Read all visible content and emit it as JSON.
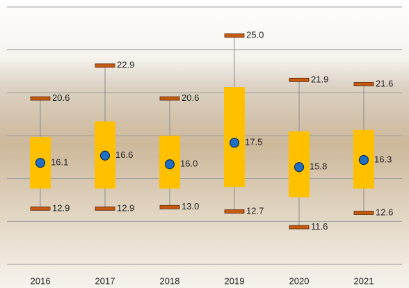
{
  "chart_data": {
    "type": "range-box",
    "categories": [
      "2016",
      "2017",
      "2018",
      "2019",
      "2020",
      "2021"
    ],
    "max": {
      "values": [
        20.6,
        22.9,
        20.6,
        25.0,
        21.9,
        21.6
      ],
      "value_labels": [
        "20.6",
        "22.9",
        "20.6",
        "25.0",
        "21.9",
        "21.6"
      ],
      "color": "#c55a11"
    },
    "min": {
      "values": [
        12.9,
        12.9,
        13.0,
        12.7,
        11.6,
        12.6
      ],
      "value_labels": [
        "12.9",
        "12.9",
        "13.0",
        "12.7",
        "11.6",
        "12.6"
      ],
      "color": "#c55a11"
    },
    "mean": {
      "values": [
        16.1,
        16.6,
        16.0,
        17.5,
        15.8,
        16.3
      ],
      "value_labels": [
        "16.1",
        "16.6",
        "16.0",
        "17.5",
        "15.8",
        "16.3"
      ],
      "color": "#1f6fc5"
    },
    "upper": {
      "values": [
        17.9,
        19.0,
        18.0,
        21.4,
        18.3,
        18.4
      ],
      "color": "#ffc000"
    },
    "lower": {
      "values": [
        14.3,
        14.3,
        14.3,
        14.4,
        13.7,
        14.3
      ],
      "color": "#ffc000"
    },
    "ylim": [
      9,
      27
    ],
    "yticks": [
      9,
      12,
      15,
      18,
      21,
      24,
      27
    ],
    "grid": true
  }
}
